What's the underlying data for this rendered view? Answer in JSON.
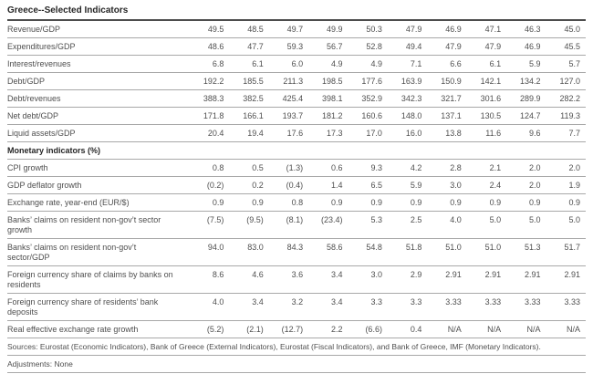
{
  "table": {
    "title": "Greece--Selected Indicators",
    "columns_count": 10,
    "sections": [
      {
        "header": null,
        "rows": [
          {
            "label": "Revenue/GDP",
            "values": [
              "49.5",
              "48.5",
              "49.7",
              "49.9",
              "50.3",
              "47.9",
              "46.9",
              "47.1",
              "46.3",
              "45.0"
            ]
          },
          {
            "label": "Expenditures/GDP",
            "values": [
              "48.6",
              "47.7",
              "59.3",
              "56.7",
              "52.8",
              "49.4",
              "47.9",
              "47.9",
              "46.9",
              "45.5"
            ]
          },
          {
            "label": "Interest/revenues",
            "values": [
              "6.8",
              "6.1",
              "6.0",
              "4.9",
              "4.9",
              "7.1",
              "6.6",
              "6.1",
              "5.9",
              "5.7"
            ]
          },
          {
            "label": "Debt/GDP",
            "values": [
              "192.2",
              "185.5",
              "211.3",
              "198.5",
              "177.6",
              "163.9",
              "150.9",
              "142.1",
              "134.2",
              "127.0"
            ]
          },
          {
            "label": "Debt/revenues",
            "values": [
              "388.3",
              "382.5",
              "425.4",
              "398.1",
              "352.9",
              "342.3",
              "321.7",
              "301.6",
              "289.9",
              "282.2"
            ]
          },
          {
            "label": "Net debt/GDP",
            "values": [
              "171.8",
              "166.1",
              "193.7",
              "181.2",
              "160.6",
              "148.0",
              "137.1",
              "130.5",
              "124.7",
              "119.3"
            ]
          },
          {
            "label": "Liquid assets/GDP",
            "values": [
              "20.4",
              "19.4",
              "17.6",
              "17.3",
              "17.0",
              "16.0",
              "13.8",
              "11.6",
              "9.6",
              "7.7"
            ]
          }
        ]
      },
      {
        "header": "Monetary indicators (%)",
        "rows": [
          {
            "label": "CPI growth",
            "values": [
              "0.8",
              "0.5",
              "(1.3)",
              "0.6",
              "9.3",
              "4.2",
              "2.8",
              "2.1",
              "2.0",
              "2.0"
            ]
          },
          {
            "label": "GDP deflator growth",
            "values": [
              "(0.2)",
              "0.2",
              "(0.4)",
              "1.4",
              "6.5",
              "5.9",
              "3.0",
              "2.4",
              "2.0",
              "1.9"
            ]
          },
          {
            "label": "Exchange rate, year-end (EUR/$)",
            "values": [
              "0.9",
              "0.9",
              "0.8",
              "0.9",
              "0.9",
              "0.9",
              "0.9",
              "0.9",
              "0.9",
              "0.9"
            ]
          },
          {
            "label": "Banks’ claims on resident non-gov’t sector\ngrowth",
            "values": [
              "(7.5)",
              "(9.5)",
              "(8.1)",
              "(23.4)",
              "5.3",
              "2.5",
              "4.0",
              "5.0",
              "5.0",
              "5.0"
            ]
          },
          {
            "label": "Banks’ claims on resident non-gov’t\nsector/GDP",
            "values": [
              "94.0",
              "83.0",
              "84.3",
              "58.6",
              "54.8",
              "51.8",
              "51.0",
              "51.0",
              "51.3",
              "51.7"
            ]
          },
          {
            "label": "Foreign currency share of claims by banks on\nresidents",
            "values": [
              "8.6",
              "4.6",
              "3.6",
              "3.4",
              "3.0",
              "2.9",
              "2.91",
              "2.91",
              "2.91",
              "2.91"
            ]
          },
          {
            "label": "Foreign currency share of residents’ bank\ndeposits",
            "values": [
              "4.0",
              "3.4",
              "3.2",
              "3.4",
              "3.3",
              "3.3",
              "3.33",
              "3.33",
              "3.33",
              "3.33"
            ]
          },
          {
            "label": "Real effective exchange rate growth",
            "values": [
              "(5.2)",
              "(2.1)",
              "(12.7)",
              "2.2",
              "(6.6)",
              "0.4",
              "N/A",
              "N/A",
              "N/A",
              "N/A"
            ]
          }
        ]
      }
    ]
  },
  "footer": {
    "sources": "Sources: Eurostat (Economic Indicators), Bank of Greece (External Indicators), Eurostat (Fiscal Indicators), and Bank of Greece, IMF (Monetary Indicators).",
    "adjustments": "Adjustments: None"
  },
  "colors": {
    "background": "#ffffff",
    "heading_text": "#262626",
    "body_text": "#4f4f4f",
    "row_separator": "#a8a8a8",
    "title_underline": "#4d4d4d"
  }
}
